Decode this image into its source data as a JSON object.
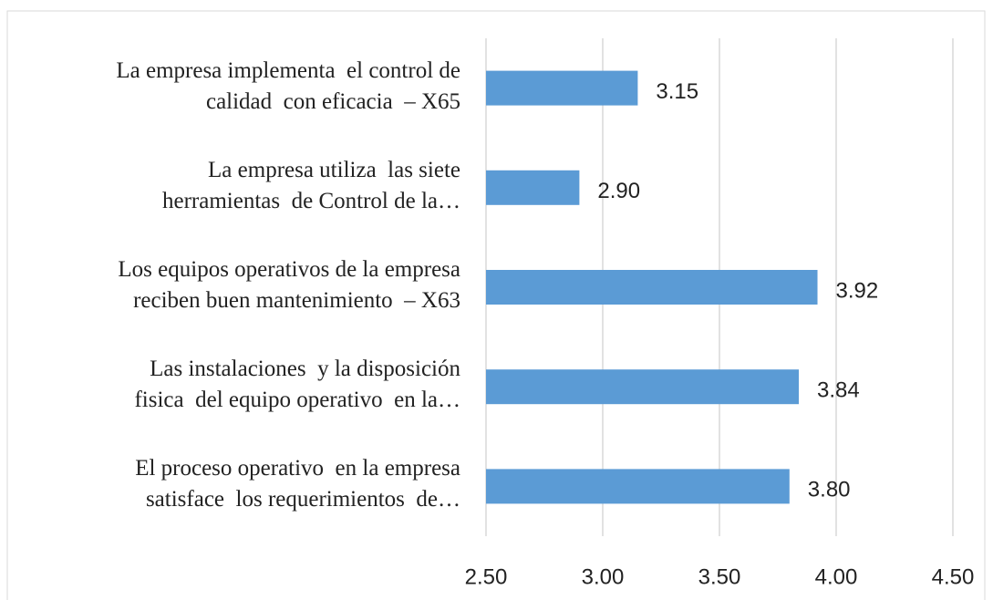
{
  "chart_data": {
    "type": "bar",
    "orientation": "horizontal",
    "categories": [
      "La empresa implementa  el control de\ncalidad  con eficacia  – X65",
      "La empresa utiliza  las siete\nherramientas  de Control de la…",
      "Los equipos operativos de la empresa\nreciben buen mantenimiento  – X63",
      "Las instalaciones  y la disposición\nfisica  del equipo operativo  en la…",
      "El proceso operativo  en la empresa\nsatisface  los requerimientos  de…"
    ],
    "values": [
      3.15,
      2.9,
      3.92,
      3.84,
      3.8
    ],
    "value_labels": [
      "3.15",
      "2.90",
      "3.92",
      "3.84",
      "3.80"
    ],
    "color": "#5b9bd5",
    "xlim": [
      2.5,
      4.5
    ],
    "xticks": [
      {
        "value": 2.5,
        "label": "2.50"
      },
      {
        "value": 3,
        "label": "3.00"
      },
      {
        "value": 3.5,
        "label": "3.50"
      },
      {
        "value": 4,
        "label": "4.00"
      },
      {
        "value": 4.5,
        "label": "4.50"
      }
    ],
    "grid": true
  }
}
